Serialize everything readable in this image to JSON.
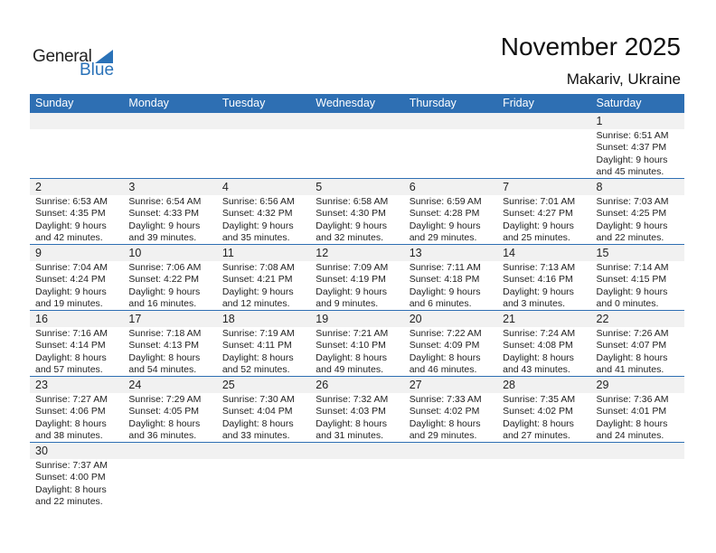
{
  "logo": {
    "text_general": "General",
    "text_blue": "Blue"
  },
  "header": {
    "title": "November 2025",
    "location": "Makariv, Ukraine"
  },
  "colors": {
    "accent": "#2e6fb3",
    "band": "#f1f1f1"
  },
  "weekdays": [
    "Sunday",
    "Monday",
    "Tuesday",
    "Wednesday",
    "Thursday",
    "Friday",
    "Saturday"
  ],
  "weeks": [
    [
      null,
      null,
      null,
      null,
      null,
      null,
      {
        "day": "1",
        "sunrise": "Sunrise: 6:51 AM",
        "sunset": "Sunset: 4:37 PM",
        "daylight": "Daylight: 9 hours",
        "minutes": "and 45 minutes."
      }
    ],
    [
      {
        "day": "2",
        "sunrise": "Sunrise: 6:53 AM",
        "sunset": "Sunset: 4:35 PM",
        "daylight": "Daylight: 9 hours",
        "minutes": "and 42 minutes."
      },
      {
        "day": "3",
        "sunrise": "Sunrise: 6:54 AM",
        "sunset": "Sunset: 4:33 PM",
        "daylight": "Daylight: 9 hours",
        "minutes": "and 39 minutes."
      },
      {
        "day": "4",
        "sunrise": "Sunrise: 6:56 AM",
        "sunset": "Sunset: 4:32 PM",
        "daylight": "Daylight: 9 hours",
        "minutes": "and 35 minutes."
      },
      {
        "day": "5",
        "sunrise": "Sunrise: 6:58 AM",
        "sunset": "Sunset: 4:30 PM",
        "daylight": "Daylight: 9 hours",
        "minutes": "and 32 minutes."
      },
      {
        "day": "6",
        "sunrise": "Sunrise: 6:59 AM",
        "sunset": "Sunset: 4:28 PM",
        "daylight": "Daylight: 9 hours",
        "minutes": "and 29 minutes."
      },
      {
        "day": "7",
        "sunrise": "Sunrise: 7:01 AM",
        "sunset": "Sunset: 4:27 PM",
        "daylight": "Daylight: 9 hours",
        "minutes": "and 25 minutes."
      },
      {
        "day": "8",
        "sunrise": "Sunrise: 7:03 AM",
        "sunset": "Sunset: 4:25 PM",
        "daylight": "Daylight: 9 hours",
        "minutes": "and 22 minutes."
      }
    ],
    [
      {
        "day": "9",
        "sunrise": "Sunrise: 7:04 AM",
        "sunset": "Sunset: 4:24 PM",
        "daylight": "Daylight: 9 hours",
        "minutes": "and 19 minutes."
      },
      {
        "day": "10",
        "sunrise": "Sunrise: 7:06 AM",
        "sunset": "Sunset: 4:22 PM",
        "daylight": "Daylight: 9 hours",
        "minutes": "and 16 minutes."
      },
      {
        "day": "11",
        "sunrise": "Sunrise: 7:08 AM",
        "sunset": "Sunset: 4:21 PM",
        "daylight": "Daylight: 9 hours",
        "minutes": "and 12 minutes."
      },
      {
        "day": "12",
        "sunrise": "Sunrise: 7:09 AM",
        "sunset": "Sunset: 4:19 PM",
        "daylight": "Daylight: 9 hours",
        "minutes": "and 9 minutes."
      },
      {
        "day": "13",
        "sunrise": "Sunrise: 7:11 AM",
        "sunset": "Sunset: 4:18 PM",
        "daylight": "Daylight: 9 hours",
        "minutes": "and 6 minutes."
      },
      {
        "day": "14",
        "sunrise": "Sunrise: 7:13 AM",
        "sunset": "Sunset: 4:16 PM",
        "daylight": "Daylight: 9 hours",
        "minutes": "and 3 minutes."
      },
      {
        "day": "15",
        "sunrise": "Sunrise: 7:14 AM",
        "sunset": "Sunset: 4:15 PM",
        "daylight": "Daylight: 9 hours",
        "minutes": "and 0 minutes."
      }
    ],
    [
      {
        "day": "16",
        "sunrise": "Sunrise: 7:16 AM",
        "sunset": "Sunset: 4:14 PM",
        "daylight": "Daylight: 8 hours",
        "minutes": "and 57 minutes."
      },
      {
        "day": "17",
        "sunrise": "Sunrise: 7:18 AM",
        "sunset": "Sunset: 4:13 PM",
        "daylight": "Daylight: 8 hours",
        "minutes": "and 54 minutes."
      },
      {
        "day": "18",
        "sunrise": "Sunrise: 7:19 AM",
        "sunset": "Sunset: 4:11 PM",
        "daylight": "Daylight: 8 hours",
        "minutes": "and 52 minutes."
      },
      {
        "day": "19",
        "sunrise": "Sunrise: 7:21 AM",
        "sunset": "Sunset: 4:10 PM",
        "daylight": "Daylight: 8 hours",
        "minutes": "and 49 minutes."
      },
      {
        "day": "20",
        "sunrise": "Sunrise: 7:22 AM",
        "sunset": "Sunset: 4:09 PM",
        "daylight": "Daylight: 8 hours",
        "minutes": "and 46 minutes."
      },
      {
        "day": "21",
        "sunrise": "Sunrise: 7:24 AM",
        "sunset": "Sunset: 4:08 PM",
        "daylight": "Daylight: 8 hours",
        "minutes": "and 43 minutes."
      },
      {
        "day": "22",
        "sunrise": "Sunrise: 7:26 AM",
        "sunset": "Sunset: 4:07 PM",
        "daylight": "Daylight: 8 hours",
        "minutes": "and 41 minutes."
      }
    ],
    [
      {
        "day": "23",
        "sunrise": "Sunrise: 7:27 AM",
        "sunset": "Sunset: 4:06 PM",
        "daylight": "Daylight: 8 hours",
        "minutes": "and 38 minutes."
      },
      {
        "day": "24",
        "sunrise": "Sunrise: 7:29 AM",
        "sunset": "Sunset: 4:05 PM",
        "daylight": "Daylight: 8 hours",
        "minutes": "and 36 minutes."
      },
      {
        "day": "25",
        "sunrise": "Sunrise: 7:30 AM",
        "sunset": "Sunset: 4:04 PM",
        "daylight": "Daylight: 8 hours",
        "minutes": "and 33 minutes."
      },
      {
        "day": "26",
        "sunrise": "Sunrise: 7:32 AM",
        "sunset": "Sunset: 4:03 PM",
        "daylight": "Daylight: 8 hours",
        "minutes": "and 31 minutes."
      },
      {
        "day": "27",
        "sunrise": "Sunrise: 7:33 AM",
        "sunset": "Sunset: 4:02 PM",
        "daylight": "Daylight: 8 hours",
        "minutes": "and 29 minutes."
      },
      {
        "day": "28",
        "sunrise": "Sunrise: 7:35 AM",
        "sunset": "Sunset: 4:02 PM",
        "daylight": "Daylight: 8 hours",
        "minutes": "and 27 minutes."
      },
      {
        "day": "29",
        "sunrise": "Sunrise: 7:36 AM",
        "sunset": "Sunset: 4:01 PM",
        "daylight": "Daylight: 8 hours",
        "minutes": "and 24 minutes."
      }
    ],
    [
      {
        "day": "30",
        "sunrise": "Sunrise: 7:37 AM",
        "sunset": "Sunset: 4:00 PM",
        "daylight": "Daylight: 8 hours",
        "minutes": "and 22 minutes."
      },
      null,
      null,
      null,
      null,
      null,
      null
    ]
  ]
}
